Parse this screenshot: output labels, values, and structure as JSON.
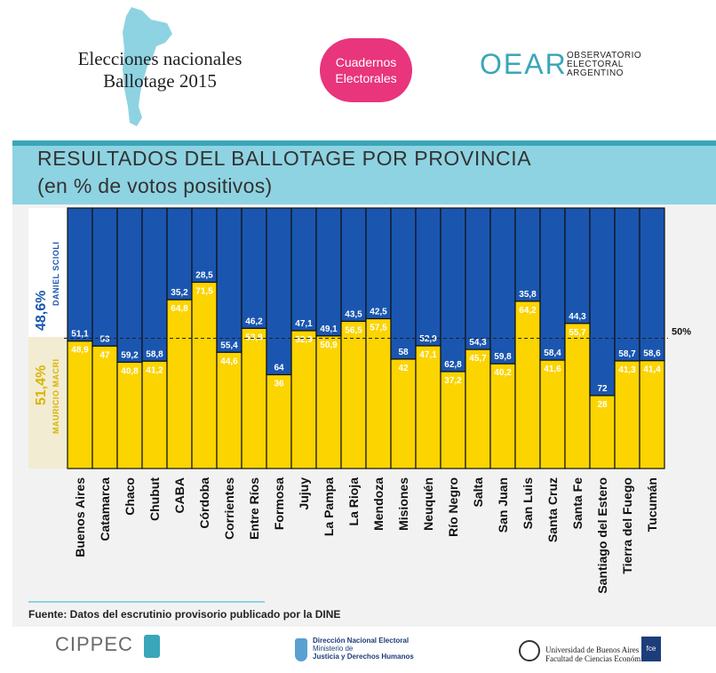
{
  "header": {
    "title_line1": "Elecciones nacionales",
    "title_line2": "Ballotage 2015",
    "badge_line1": "Cuadernos",
    "badge_line2": "Electorales",
    "oear_mark": "OEAR",
    "oear_line1": "OBSERVATORIO",
    "oear_line2": "ELECTORAL",
    "oear_line3": "ARGENTINO"
  },
  "colors": {
    "blue": "#1a56b0",
    "yellow": "#fcd400",
    "banner": "#8ed3e2",
    "accent": "#3aa6b9",
    "pink": "#e8357c"
  },
  "legend": {
    "scioli_pct": "48,6%",
    "scioli_name": "DANIEL SCIOLI",
    "macri_pct": "51,4%",
    "macri_name": "MAURICIO MACRI"
  },
  "chart_data": {
    "type": "bar",
    "stacked": true,
    "title": "RESULTADOS DEL BALLOTAGE POR PROVINCIA",
    "subtitle": "(en % de votos positivos)",
    "reference_line_label": "50%",
    "reference_line_value": 50,
    "ylim": [
      0,
      100
    ],
    "categories": [
      "Buenos Aires",
      "Catamarca",
      "Chaco",
      "Chubut",
      "CABA",
      "Córdoba",
      "Corrientes",
      "Entre Ríos",
      "Formosa",
      "Jujuy",
      "La Pampa",
      "La Rioja",
      "Mendoza",
      "Misiones",
      "Neuquén",
      "Río Negro",
      "Salta",
      "San Juan",
      "San Luis",
      "Santa Cruz",
      "Santa Fe",
      "Santiago del Estero",
      "Tierra del Fuego",
      "Tucumán"
    ],
    "series": [
      {
        "name": "Mauricio Macri",
        "color": "#fcd400",
        "values": [
          48.9,
          47,
          40.8,
          41.2,
          64.8,
          71.5,
          44.6,
          53.8,
          36,
          52.9,
          50.9,
          56.5,
          57.5,
          42,
          47.1,
          37.2,
          45.7,
          40.2,
          64.2,
          41.6,
          55.7,
          28,
          41.3,
          41.4
        ],
        "labels": [
          "48,9",
          "47",
          "40,8",
          "41,2",
          "64,8",
          "71,5",
          "44,6",
          "53,8",
          "36",
          "52,9",
          "50,9",
          "56,5",
          "57,5",
          "42",
          "47,1",
          "37,2",
          "45,7",
          "40,2",
          "64,2",
          "41,6",
          "55,7",
          "28",
          "41,3",
          "41,4"
        ]
      },
      {
        "name": "Daniel Scioli",
        "color": "#1a56b0",
        "values": [
          51.1,
          53,
          59.2,
          58.8,
          35.2,
          28.5,
          55.4,
          46.2,
          64,
          47.1,
          49.1,
          43.5,
          42.5,
          58,
          52.9,
          62.8,
          54.3,
          59.8,
          35.8,
          58.4,
          44.3,
          72,
          58.7,
          58.6
        ],
        "labels": [
          "51,1",
          "53",
          "59,2",
          "58,8",
          "35,2",
          "28,5",
          "55,4",
          "46,2",
          "64",
          "47,1",
          "49,1",
          "43,5",
          "42,5",
          "58",
          "52,9",
          "62,8",
          "54,3",
          "59,8",
          "35,8",
          "58,4",
          "44,3",
          "72",
          "58,7",
          "58,6"
        ]
      }
    ]
  },
  "source": "Fuente: Datos del escrutinio provisorio publicado por la DINE",
  "footer": {
    "cippec": "CIPPEC",
    "dine_line1": "Dirección Nacional Electoral",
    "dine_line2": "Ministerio de",
    "dine_line3": "Justicia y Derechos Humanos",
    "uba_line1": "Universidad de Buenos Aires",
    "uba_line2": "Facultad de Ciencias Económicas",
    "fce": "fce"
  }
}
